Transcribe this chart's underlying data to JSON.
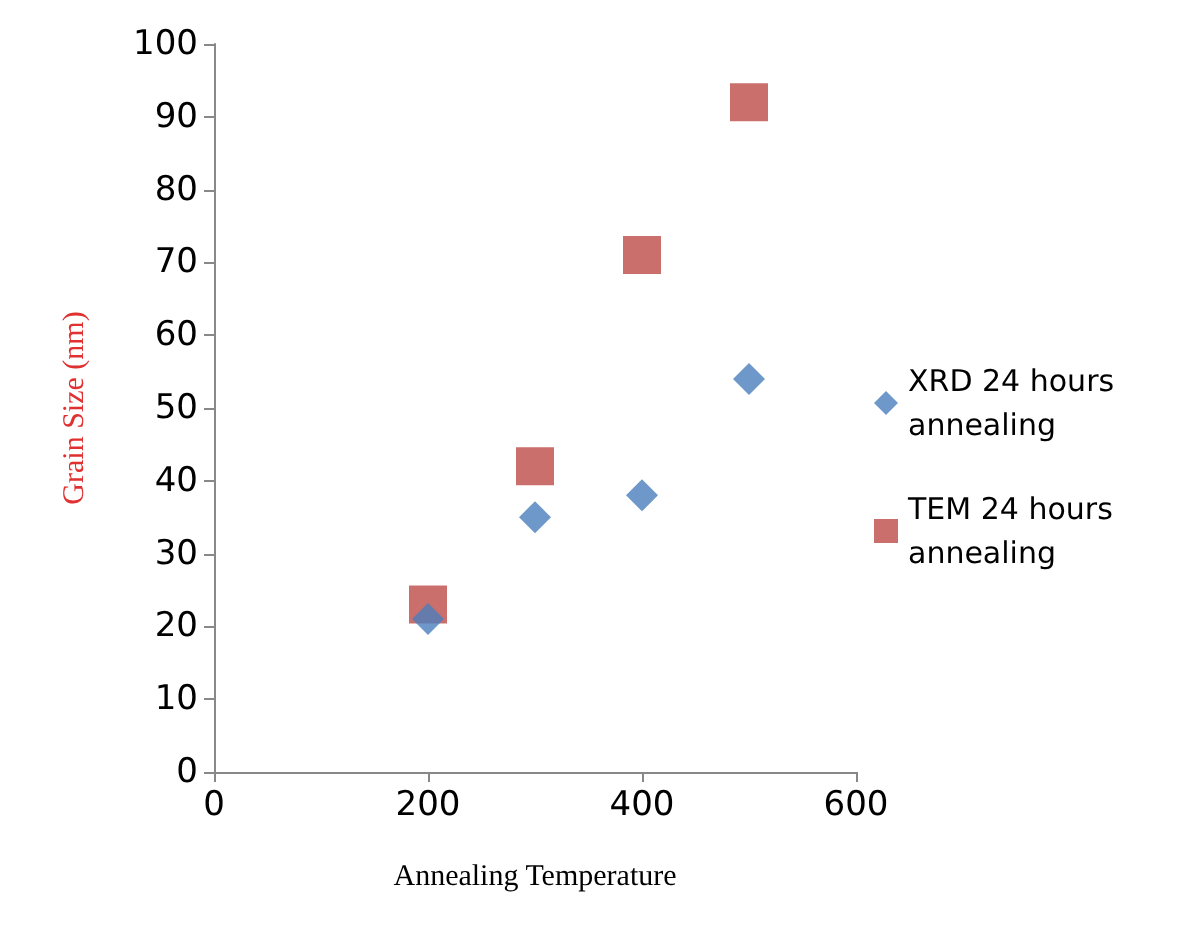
{
  "chart_data": {
    "type": "scatter",
    "xlabel": "Annealing Temperature",
    "ylabel": "Grain Size (nm)",
    "xlim": [
      0,
      600
    ],
    "xticks": [
      0,
      200,
      400,
      600
    ],
    "ylim": [
      0,
      100
    ],
    "yticks": [
      0,
      10,
      20,
      30,
      40,
      50,
      60,
      70,
      80,
      90,
      100
    ],
    "grid": false,
    "legend": "right",
    "series": [
      {
        "name": "XRD 24 hours annealing",
        "color": "#4a7ebb",
        "marker": "diamond",
        "x": [
          200,
          300,
          400,
          500
        ],
        "values": [
          21,
          35,
          38,
          54
        ]
      },
      {
        "name": "TEM 24 hours annealing",
        "color": "#be4b48",
        "marker": "square",
        "x": [
          200,
          300,
          400,
          500
        ],
        "values": [
          23,
          42,
          71,
          92
        ]
      }
    ]
  }
}
